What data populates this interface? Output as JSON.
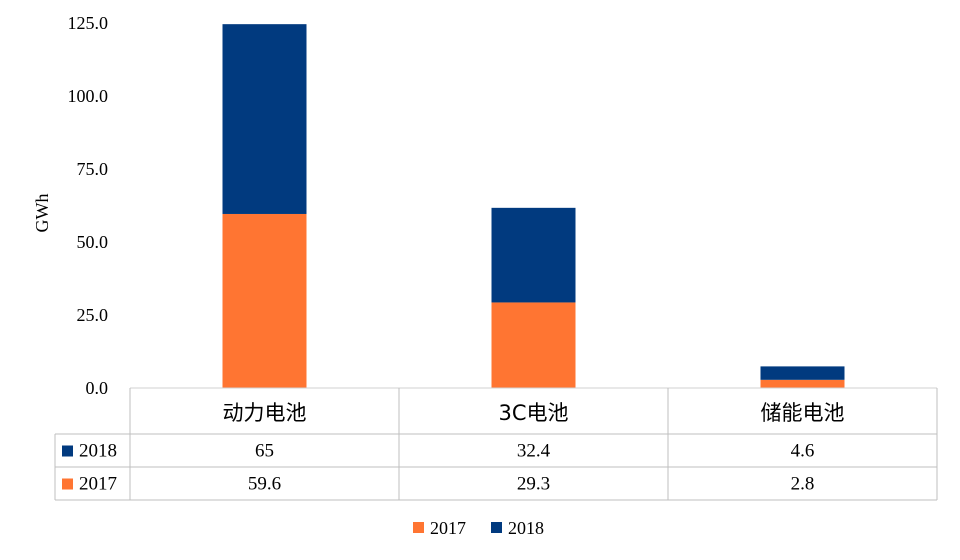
{
  "chart_data": {
    "type": "bar",
    "stacked": true,
    "categories": [
      "动力电池",
      "3C电池",
      "储能电池"
    ],
    "series": [
      {
        "name": "2017",
        "values": [
          59.6,
          29.3,
          2.8
        ],
        "color": "#FF7532"
      },
      {
        "name": "2018",
        "values": [
          65,
          32.4,
          4.6
        ],
        "color": "#013A7F"
      }
    ],
    "ylabel": "GWh",
    "ylim": [
      0,
      125
    ],
    "yticks": [
      "0.0",
      "25.0",
      "50.0",
      "75.0",
      "100.0",
      "125.0"
    ],
    "data_table": {
      "rows": [
        {
          "series": "2018",
          "values": [
            "65",
            "32.4",
            "4.6"
          ]
        },
        {
          "series": "2017",
          "values": [
            "59.6",
            "29.3",
            "2.8"
          ]
        }
      ]
    },
    "legend": {
      "position": "bottom",
      "entries": [
        "2017",
        "2018"
      ]
    },
    "grid": false
  }
}
